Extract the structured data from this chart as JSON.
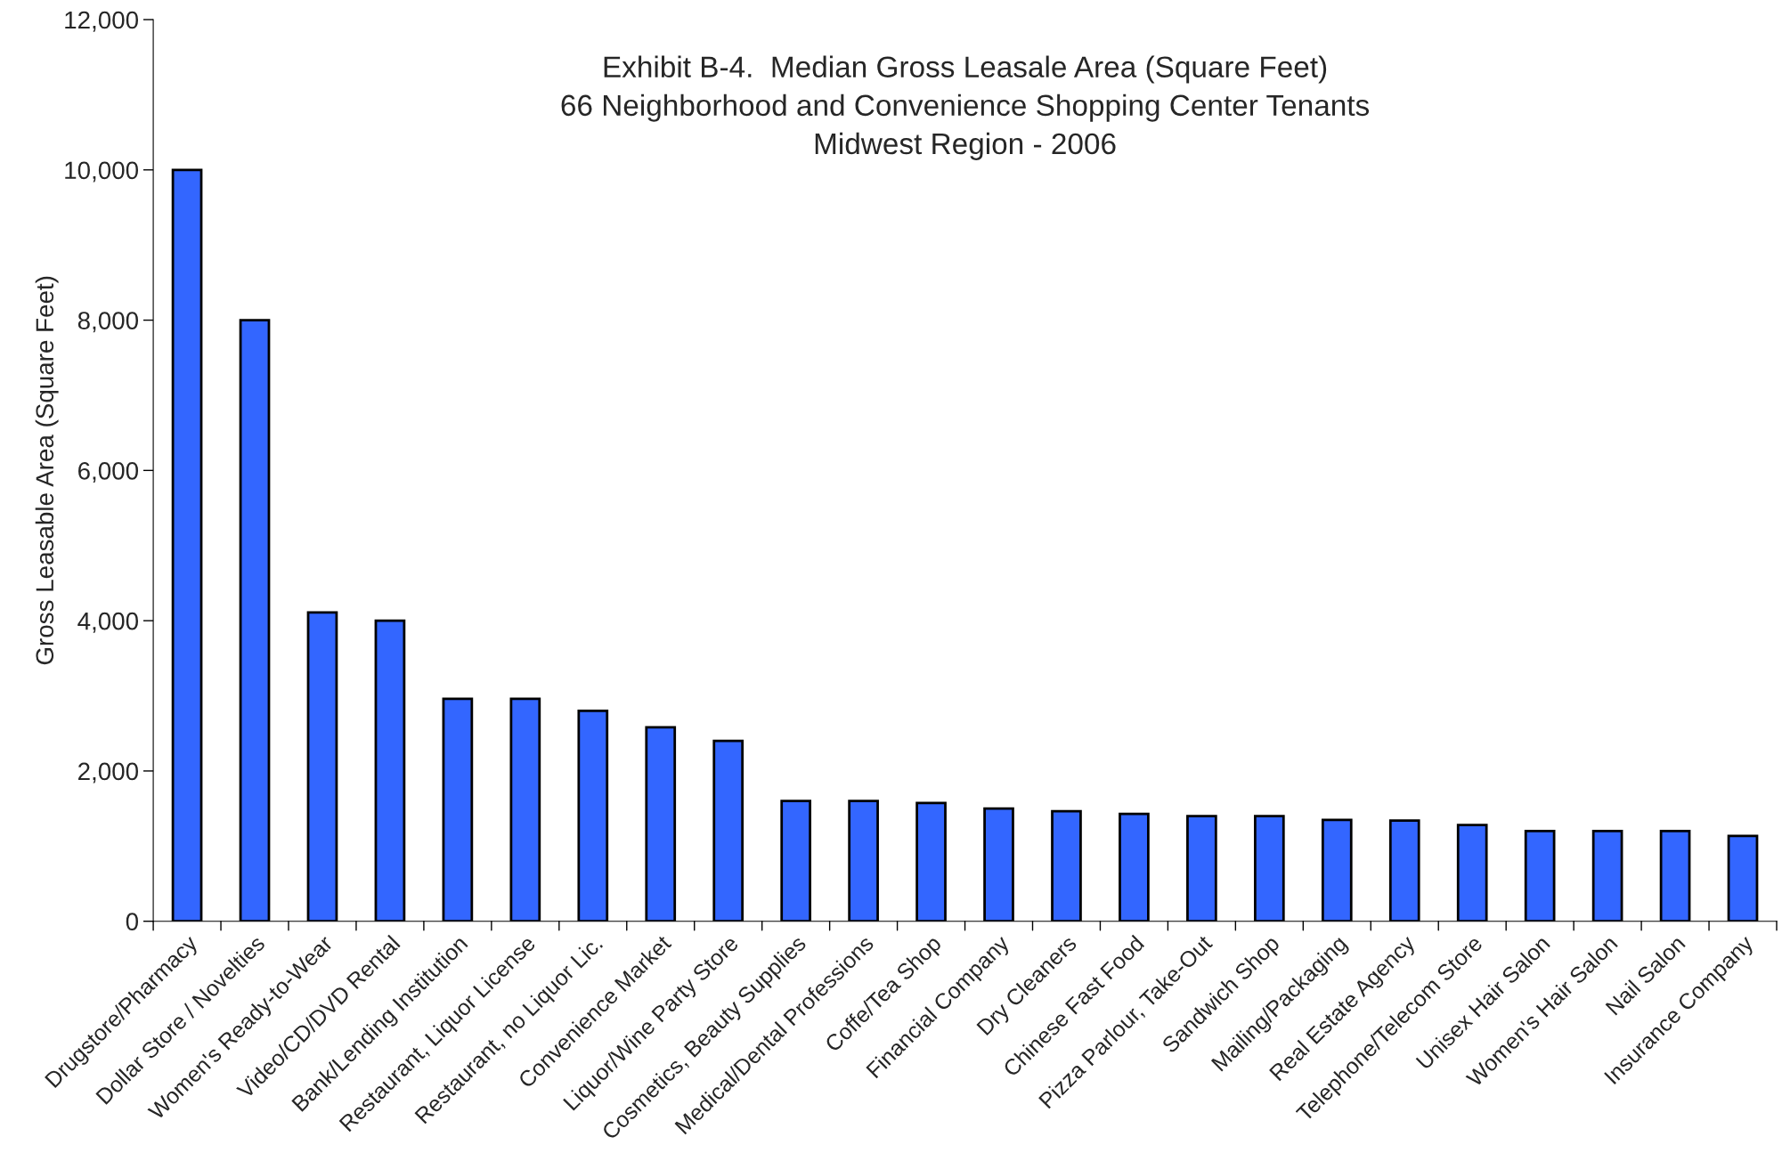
{
  "chart_data": {
    "type": "bar",
    "title": "Exhibit B-4.  Median Gross Leasale Area (Square Feet)\n66 Neighborhood and Convenience Shopping Center Tenants\nMidwest Region - 2006",
    "ylabel": "Gross Leasable Area (Square Feet)",
    "categories": [
      "Drugstore/Pharmacy",
      "Dollar Store / Novelties",
      "Women's Ready-to-Wear",
      "Video/CD/DVD Rental",
      "Bank/Lending Institution",
      "Restaurant, Liquor License",
      "Restaurant, no Liquor Lic.",
      "Convenience Market",
      "Liquor/Wine Party Store",
      "Cosmetics, Beauty Supplies",
      "Medical/Dental Professions",
      "Coffe/Tea Shop",
      "Financial Company",
      "Dry Cleaners",
      "Chinese Fast Food",
      "Pizza Parlour, Take-Out",
      "Sandwich Shop",
      "Mailing/Packaging",
      "Real Estate Agency",
      "Telephone/Telecom Store",
      "Unisex Hair Salon",
      "Women's Hair Salon",
      "Nail Salon",
      "Insurance Company"
    ],
    "values": [
      10000,
      8000,
      4110,
      4000,
      2960,
      2960,
      2800,
      2580,
      2400,
      1600,
      1600,
      1575,
      1500,
      1465,
      1430,
      1400,
      1400,
      1350,
      1340,
      1280,
      1200,
      1200,
      1200,
      1135
    ],
    "color": "#3366ff",
    "ylim": [
      0,
      12000
    ],
    "yticks": [
      {
        "value": 0,
        "label": "0"
      },
      {
        "value": 2000,
        "label": "2,000"
      },
      {
        "value": 4000,
        "label": "4,000"
      },
      {
        "value": 6000,
        "label": "6,000"
      },
      {
        "value": 8000,
        "label": "8,000"
      },
      {
        "value": 10000,
        "label": "10,000"
      },
      {
        "value": 12000,
        "label": "12,000"
      }
    ],
    "grid": false,
    "legend": false
  }
}
